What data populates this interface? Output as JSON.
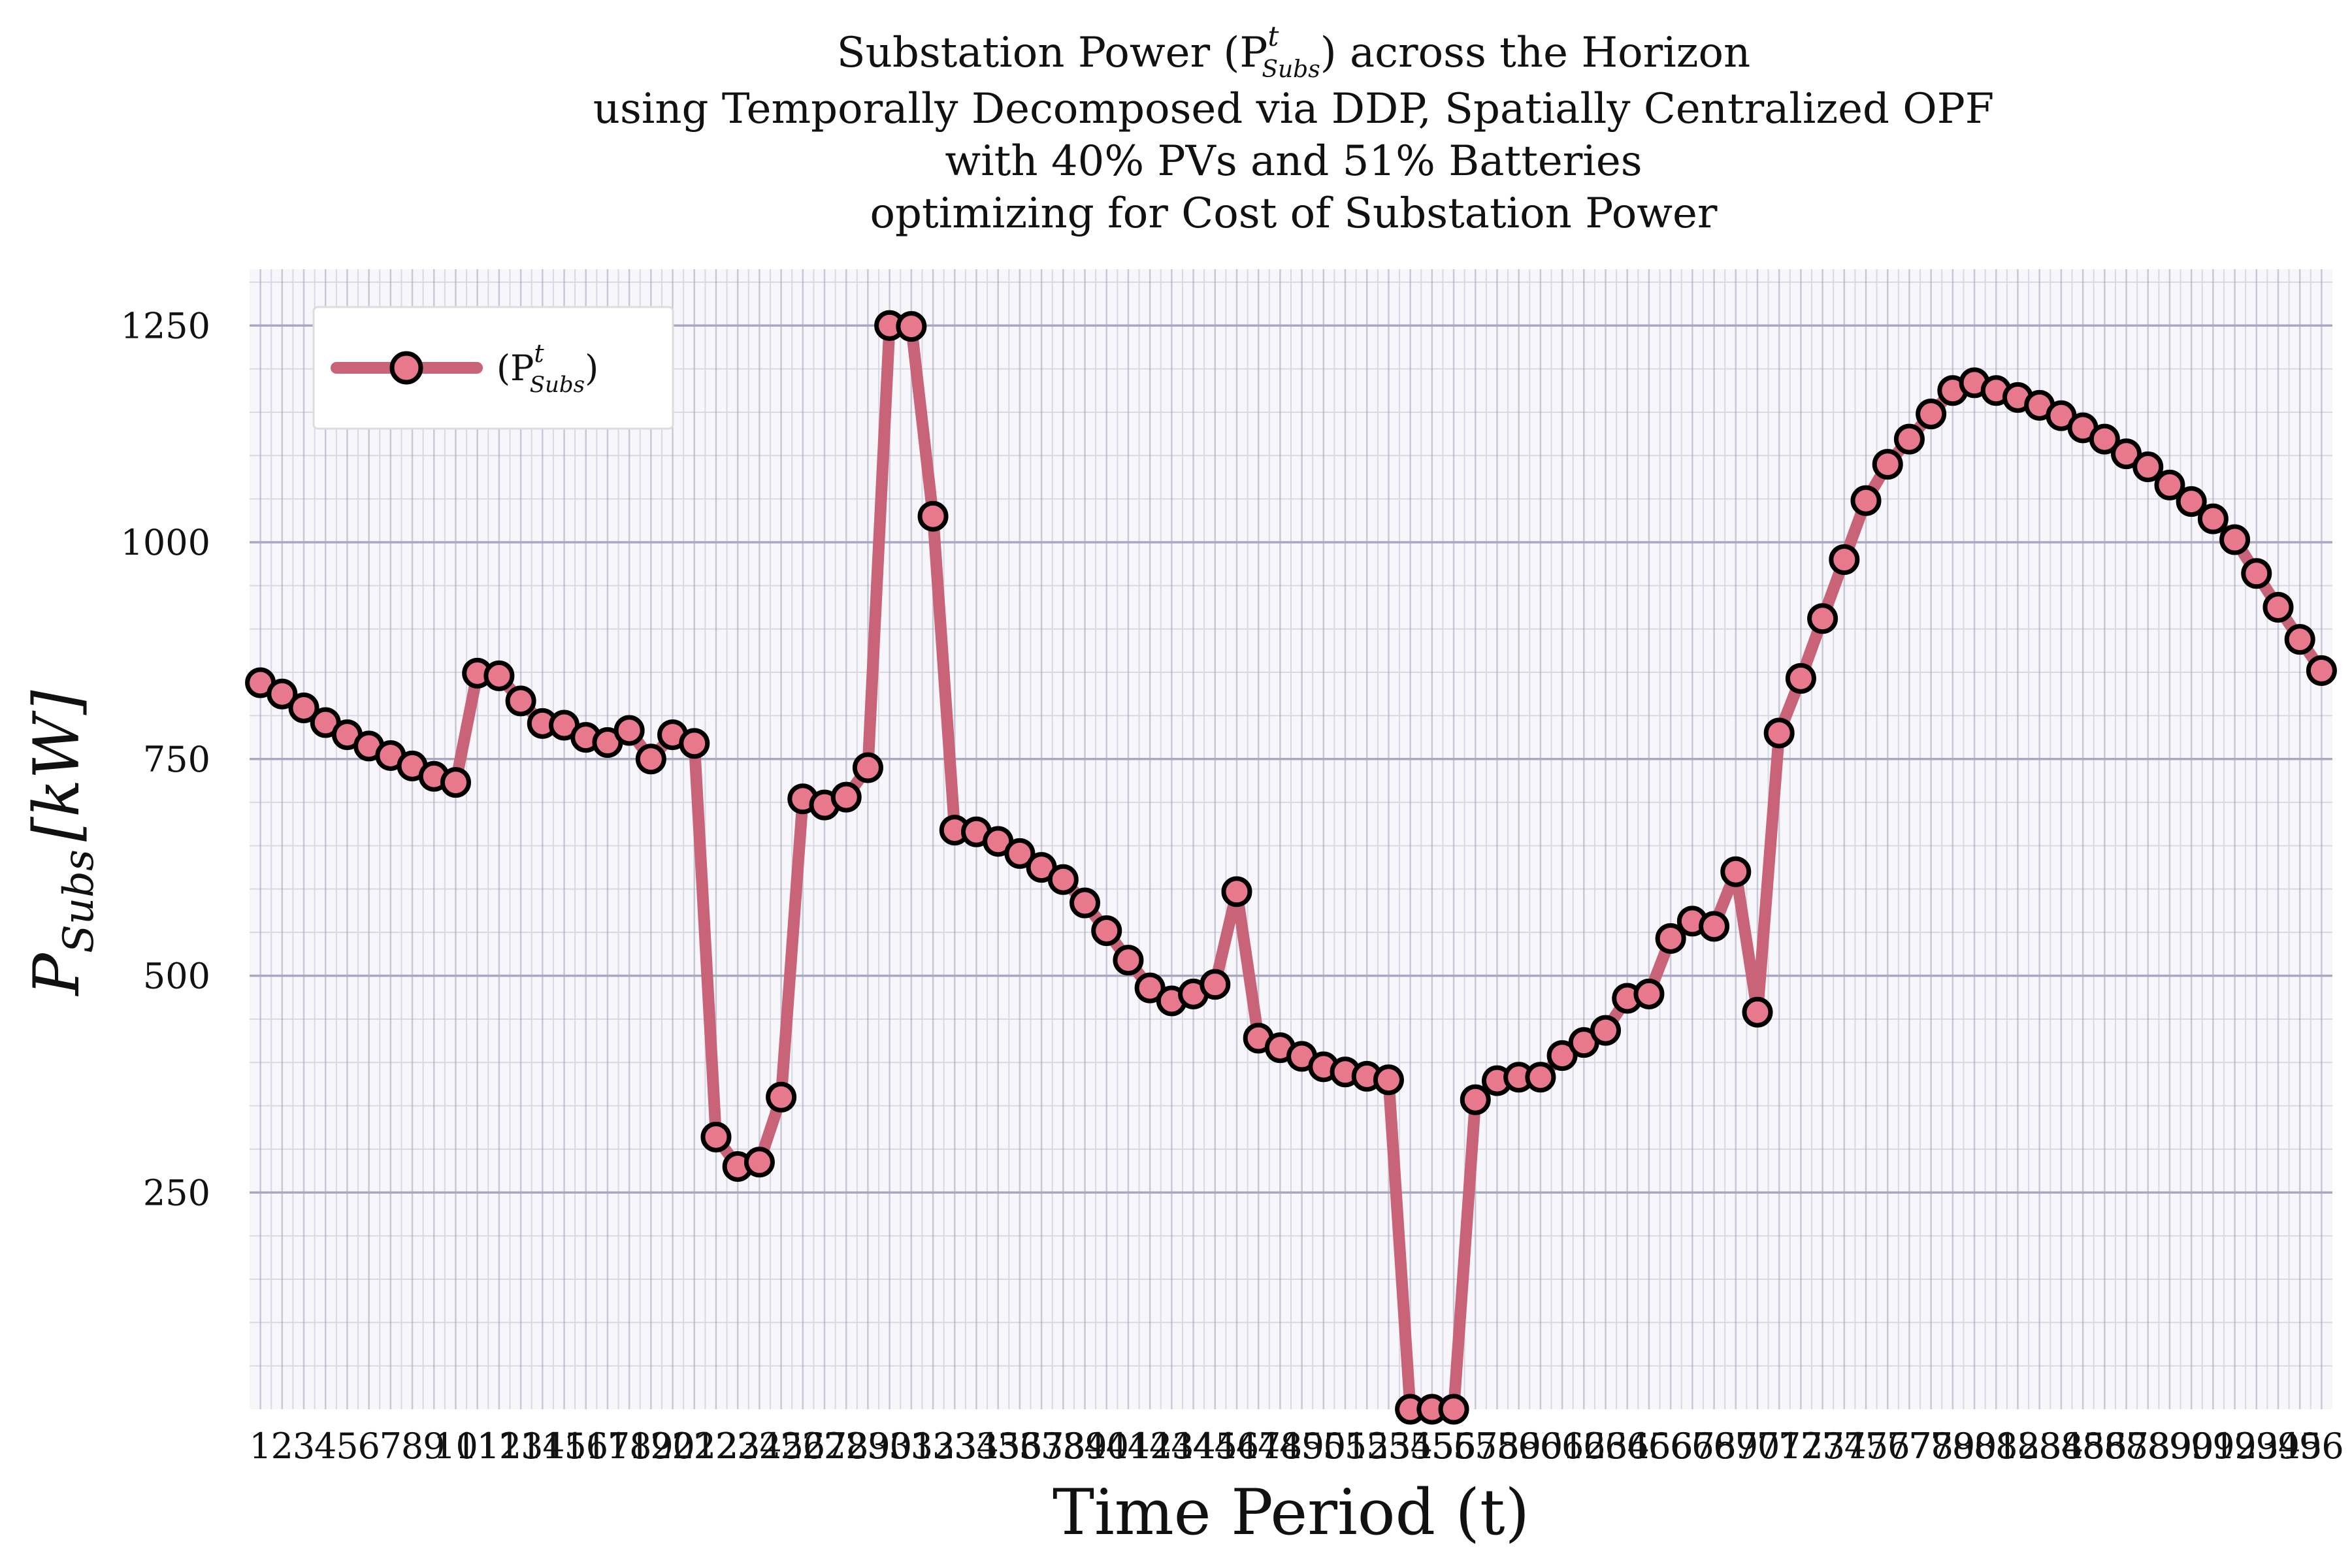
{
  "chart_data": {
    "type": "line",
    "title": [
      "Substation Power (P",
      "using Temporally Decomposed via DDP, Spatially Centralized OPF",
      "with 40% PVs and 51% Batteries",
      "optimizing for Cost of Substation Power"
    ],
    "title_symbol": {
      "base": "P",
      "sup": "t",
      "sub": "Subs",
      "suffix": ") across the Horizon"
    },
    "xlabel": "Time Period (t)",
    "ylabel": "P",
    "ylabel_sub": "Subs",
    "ylabel_unit": "[kW]",
    "xlim": [
      0.5,
      96.5
    ],
    "ylim": [
      0,
      1315
    ],
    "yticks": [
      250,
      500,
      750,
      1000,
      1250
    ],
    "grid": true,
    "legend_position": "upper-left",
    "series": [
      {
        "name": "(P",
        "name_sup": "t",
        "name_sub": "Subs",
        "name_suffix": ")",
        "line_color": "#C96478",
        "marker_face": "#E8788C",
        "marker_edge": "#000000",
        "x": [
          1,
          2,
          3,
          4,
          5,
          6,
          7,
          8,
          9,
          10,
          11,
          12,
          13,
          14,
          15,
          16,
          17,
          18,
          19,
          20,
          21,
          22,
          23,
          24,
          25,
          26,
          27,
          28,
          29,
          30,
          31,
          32,
          33,
          34,
          35,
          36,
          37,
          38,
          39,
          40,
          41,
          42,
          43,
          44,
          45,
          46,
          47,
          48,
          49,
          50,
          51,
          52,
          53,
          54,
          55,
          56,
          57,
          58,
          59,
          60,
          61,
          62,
          63,
          64,
          65,
          66,
          67,
          68,
          69,
          70,
          71,
          72,
          73,
          74,
          75,
          76,
          77,
          78,
          79,
          80,
          81,
          82,
          83,
          84,
          85,
          86,
          87,
          88,
          89,
          90,
          91,
          92,
          93,
          94,
          95,
          96
        ],
        "values": [
          838,
          825,
          809,
          792,
          778,
          765,
          754,
          742,
          730,
          723,
          849,
          846,
          817,
          791,
          789,
          775,
          769,
          783,
          750,
          778,
          768,
          314,
          280,
          285,
          360,
          704,
          697,
          706,
          740,
          1250,
          1249,
          1030,
          668,
          666,
          655,
          641,
          625,
          611,
          584,
          552,
          518,
          486,
          471,
          479,
          490,
          597,
          428,
          417,
          407,
          395,
          389,
          384,
          380,
          0,
          0,
          0,
          357,
          379,
          383,
          383,
          408,
          423,
          437,
          474,
          479,
          543,
          563,
          557,
          620,
          458,
          780,
          843,
          912,
          980,
          1048,
          1090,
          1119,
          1148,
          1175,
          1184,
          1175,
          1167,
          1158,
          1146,
          1132,
          1119,
          1102,
          1087,
          1066,
          1047,
          1027,
          1003,
          964,
          925,
          888,
          852
        ]
      }
    ],
    "x_tick_labels": [
      "1",
      "2",
      "3",
      "4",
      "5",
      "6",
      "7",
      "8",
      "9",
      "10",
      "11",
      "12",
      "13",
      "14",
      "15",
      "16",
      "17",
      "18",
      "19",
      "20",
      "21",
      "22",
      "23",
      "24",
      "25",
      "26",
      "27",
      "28",
      "29",
      "30",
      "31",
      "32",
      "33",
      "34",
      "35",
      "36",
      "37",
      "38",
      "39",
      "40",
      "41",
      "42",
      "43",
      "44",
      "45",
      "46",
      "47",
      "48",
      "49",
      "50",
      "51",
      "52",
      "53",
      "54",
      "55",
      "56",
      "57",
      "58",
      "59",
      "60",
      "61",
      "62",
      "63",
      "64",
      "65",
      "66",
      "67",
      "68",
      "69",
      "70",
      "71",
      "72",
      "73",
      "74",
      "75",
      "76",
      "77",
      "78",
      "79",
      "80",
      "81",
      "82",
      "83",
      "84",
      "85",
      "86",
      "87",
      "88",
      "89",
      "90",
      "91",
      "92",
      "93",
      "94",
      "95",
      "96"
    ],
    "colors": {
      "plot_bg": "#F7F7FB",
      "grid_major": "#A8A8C0",
      "grid_minor": "#D8D8E6",
      "legend_bg": "#FFFFFF"
    }
  }
}
